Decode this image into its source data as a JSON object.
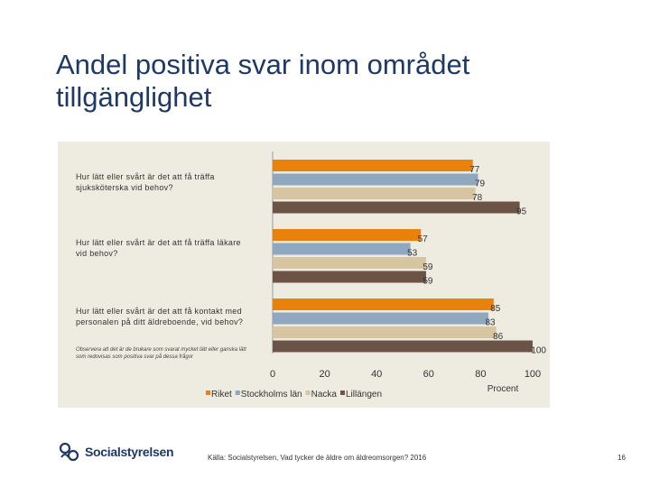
{
  "title": "Andel positiva svar inom området tillgänglighet",
  "chart_data": {
    "type": "bar",
    "orientation": "horizontal",
    "categories": [
      "Hur lätt eller svårt är det att få träffa sjuksköterska vid behov?",
      "Hur lätt eller svårt är det att få träffa läkare vid behov?",
      "Hur lätt eller svårt är det att få kontakt med personalen på ditt äldreboende, vid behov?"
    ],
    "series": [
      {
        "name": "Riket",
        "color": "#e8820c",
        "values": [
          77,
          57,
          85
        ]
      },
      {
        "name": "Stockholms län",
        "color": "#8fa8c0",
        "values": [
          79,
          53,
          83
        ]
      },
      {
        "name": "Nacka",
        "color": "#d6c5a0",
        "values": [
          78,
          59,
          86
        ]
      },
      {
        "name": "Lillängen",
        "color": "#6b5346",
        "values": [
          95,
          59,
          100
        ]
      }
    ],
    "xlim": [
      0,
      100
    ],
    "xticks": [
      "0",
      "20",
      "40",
      "60",
      "80",
      "100"
    ],
    "xlabel": "Procent",
    "ylabel": "",
    "legend_position": "bottom"
  },
  "note": "Observera att det är de brukare som svarat mycket lätt eller ganska lätt som redovisas som positiva svar på dessa frågor",
  "footer": {
    "logo_text": "Socialstyrelsen",
    "source": "Källa: Socialstyrelsen, Vad tycker de äldre om äldreomsorgen? 2016",
    "page_number": "16"
  }
}
